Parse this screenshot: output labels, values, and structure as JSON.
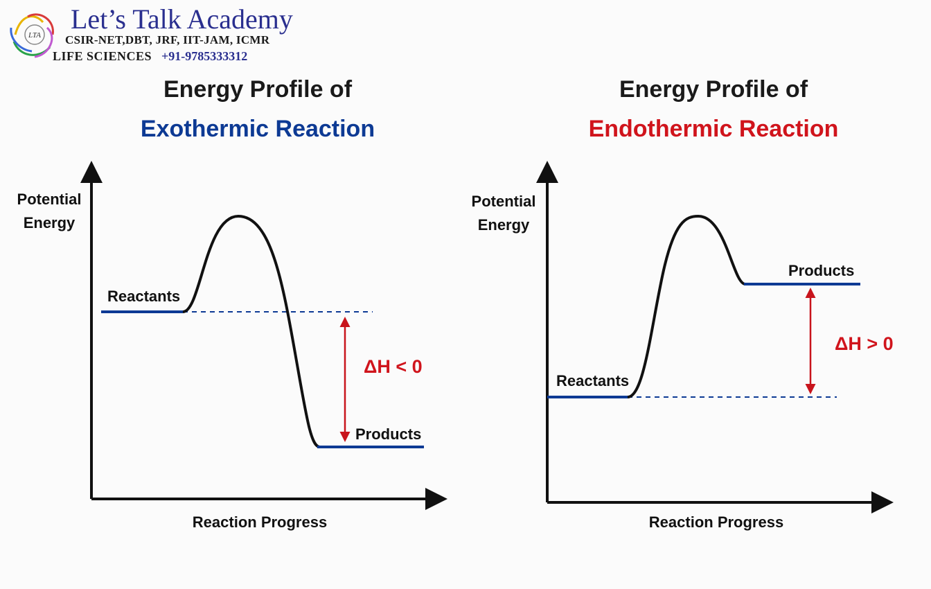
{
  "brand": {
    "name": "Let’s Talk Academy",
    "exams": "CSIR-NET,DBT, JRF, IIT-JAM, ICMR",
    "field": "LIFE SCIENCES",
    "phone": "+91-9785333312",
    "logo_text": "LTA"
  },
  "colors": {
    "blue": "#0d3a94",
    "red": "#d0141c",
    "curve": "#111111",
    "arrow": "#c8141c"
  },
  "exothermic": {
    "title_line1": "Energy Profile of",
    "title_line2": "Exothermic Reaction",
    "y_axis": [
      "Potential",
      "Energy"
    ],
    "x_axis": "Reaction Progress",
    "reactants": "Reactants",
    "products": "Products",
    "delta_h": "ΔH < 0"
  },
  "endothermic": {
    "title_line1": "Energy Profile of",
    "title_line2": "Endothermic Reaction",
    "y_axis": [
      "Potential",
      "Energy"
    ],
    "x_axis": "Reaction Progress",
    "reactants": "Reactants",
    "products": "Products",
    "delta_h": "ΔH > 0"
  }
}
